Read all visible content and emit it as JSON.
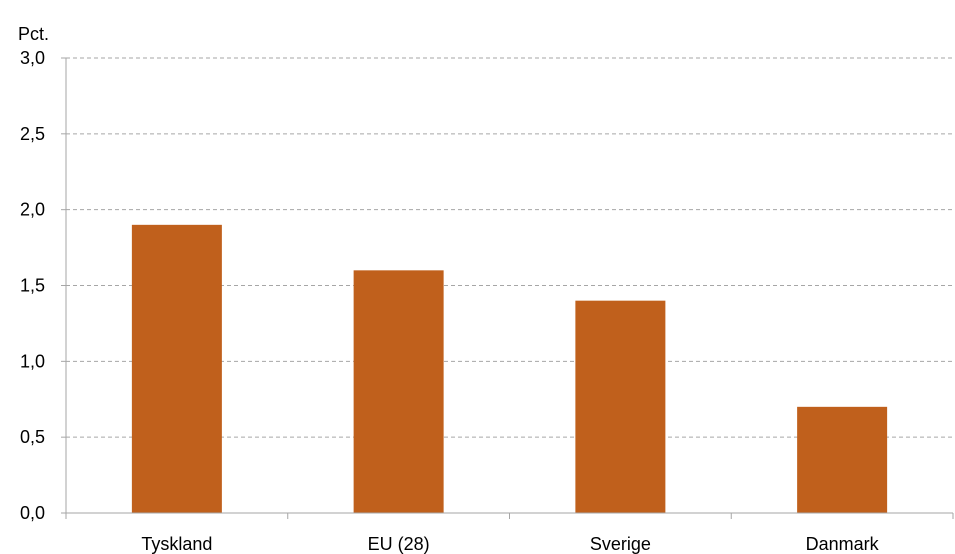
{
  "chart_data": {
    "type": "bar",
    "title": "",
    "ylabel": "Pct.",
    "xlabel": "",
    "categories": [
      "Tyskland",
      "EU (28)",
      "Sverige",
      "Danmark"
    ],
    "values": [
      1.9,
      1.6,
      1.4,
      0.7
    ],
    "ylim": [
      0,
      3.0
    ],
    "yticks": [
      "0,0",
      "0,5",
      "1,0",
      "1,5",
      "2,0",
      "2,5",
      "3,0"
    ],
    "grid": true,
    "legend": "none",
    "bar_color": "#c0601c",
    "grid_color": "#a6a6a6",
    "axis_color": "#a6a6a6"
  }
}
